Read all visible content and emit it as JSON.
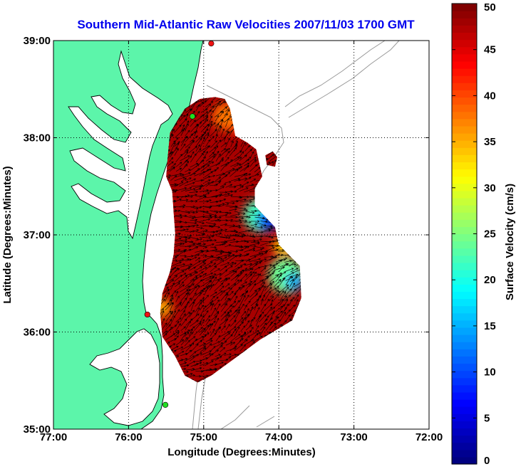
{
  "colors": {
    "title": "#0000ee",
    "land": "#5cf5aa",
    "coast_outline": "#000000",
    "bathymetry": "#999999",
    "grid": "#000000",
    "vectors": "#000000",
    "site_green": "#22dd22",
    "site_red": "#ee1111"
  },
  "chart_data": {
    "type": "heatmap",
    "title": "Southern Mid-Atlantic Raw Velocities 2007/11/03 1700 GMT",
    "xlabel": "Longitude (Degrees:Minutes)",
    "ylabel": "Latitude (Degrees:Minutes)",
    "xlim": [
      -77,
      -72
    ],
    "ylim": [
      35,
      39
    ],
    "x_ticks": [
      {
        "value": -77,
        "label": "77:00"
      },
      {
        "value": -76,
        "label": "76:00"
      },
      {
        "value": -75,
        "label": "75:00"
      },
      {
        "value": -74,
        "label": "74:00"
      },
      {
        "value": -73,
        "label": "73:00"
      },
      {
        "value": -72,
        "label": "72:00"
      }
    ],
    "y_ticks": [
      {
        "value": 35,
        "label": "35:00"
      },
      {
        "value": 36,
        "label": "36:00"
      },
      {
        "value": 37,
        "label": "37:00"
      },
      {
        "value": 38,
        "label": "38:00"
      },
      {
        "value": 39,
        "label": "39:00"
      }
    ],
    "grid": "dotted",
    "colorbar": {
      "label": "Surface Velocity (cm/s)",
      "min": 0,
      "max": 50,
      "colormap": "jet",
      "ticks": [
        {
          "value": 0,
          "label": "0"
        },
        {
          "value": 5,
          "label": "5"
        },
        {
          "value": 10,
          "label": "10"
        },
        {
          "value": 15,
          "label": "15"
        },
        {
          "value": 20,
          "label": "20"
        },
        {
          "value": 25,
          "label": "25"
        },
        {
          "value": 30,
          "label": "30"
        },
        {
          "value": 35,
          "label": "35"
        },
        {
          "value": 40,
          "label": "40"
        },
        {
          "value": 45,
          "label": "45"
        },
        {
          "value": 50,
          "label": "50"
        }
      ]
    },
    "coverage_lonlat": [
      [
        -75.45,
        38.05
      ],
      [
        -75.35,
        38.18
      ],
      [
        -75.25,
        38.3
      ],
      [
        -75.05,
        38.4
      ],
      [
        -74.85,
        38.42
      ],
      [
        -74.72,
        38.4
      ],
      [
        -74.65,
        38.3
      ],
      [
        -74.58,
        38.02
      ],
      [
        -74.42,
        37.95
      ],
      [
        -74.3,
        37.88
      ],
      [
        -74.22,
        37.6
      ],
      [
        -74.32,
        37.48
      ],
      [
        -74.32,
        37.3
      ],
      [
        -74.05,
        37.08
      ],
      [
        -74.0,
        36.9
      ],
      [
        -73.72,
        36.68
      ],
      [
        -73.7,
        36.35
      ],
      [
        -73.82,
        36.12
      ],
      [
        -74.25,
        35.92
      ],
      [
        -74.6,
        35.72
      ],
      [
        -74.9,
        35.55
      ],
      [
        -75.08,
        35.48
      ],
      [
        -75.25,
        35.55
      ],
      [
        -75.38,
        35.75
      ],
      [
        -75.55,
        35.95
      ],
      [
        -75.58,
        36.2
      ],
      [
        -75.55,
        36.4
      ],
      [
        -75.45,
        36.62
      ],
      [
        -75.4,
        36.8
      ],
      [
        -75.38,
        37.02
      ],
      [
        -75.4,
        37.22
      ],
      [
        -75.42,
        37.45
      ],
      [
        -75.5,
        37.6
      ],
      [
        -75.48,
        37.8
      ]
    ],
    "coverage_gaps_lonlat": [
      [
        [
          -74.18,
          37.82
        ],
        [
          -74.08,
          37.86
        ],
        [
          -74.02,
          37.8
        ],
        [
          -74.05,
          37.7
        ],
        [
          -74.16,
          37.72
        ]
      ]
    ],
    "speed_features": [
      {
        "lon": -74.15,
        "lat": 37.15,
        "speed": 10,
        "radius": 0.14
      },
      {
        "lon": -74.25,
        "lat": 37.2,
        "speed": 22,
        "radius": 0.22
      },
      {
        "lon": -73.8,
        "lat": 36.52,
        "speed": 15,
        "radius": 0.12
      },
      {
        "lon": -73.9,
        "lat": 36.58,
        "speed": 24,
        "radius": 0.24
      },
      {
        "lon": -73.95,
        "lat": 36.88,
        "speed": 33,
        "radius": 0.12
      },
      {
        "lon": -74.7,
        "lat": 38.22,
        "speed": 38,
        "radius": 0.18
      },
      {
        "lon": -75.55,
        "lat": 36.25,
        "speed": 35,
        "radius": 0.12
      },
      {
        "lon": -74.5,
        "lat": 38.1,
        "speed": 42,
        "radius": 0.12
      }
    ],
    "background_speed": 48,
    "coastal_sites_lonlat": [
      {
        "lon": -74.9,
        "lat": 38.97,
        "color": "red"
      },
      {
        "lon": -75.15,
        "lat": 38.22,
        "color": "green"
      },
      {
        "lon": -75.75,
        "lat": 36.18,
        "color": "red"
      },
      {
        "lon": -75.51,
        "lat": 35.25,
        "color": "green"
      }
    ]
  }
}
